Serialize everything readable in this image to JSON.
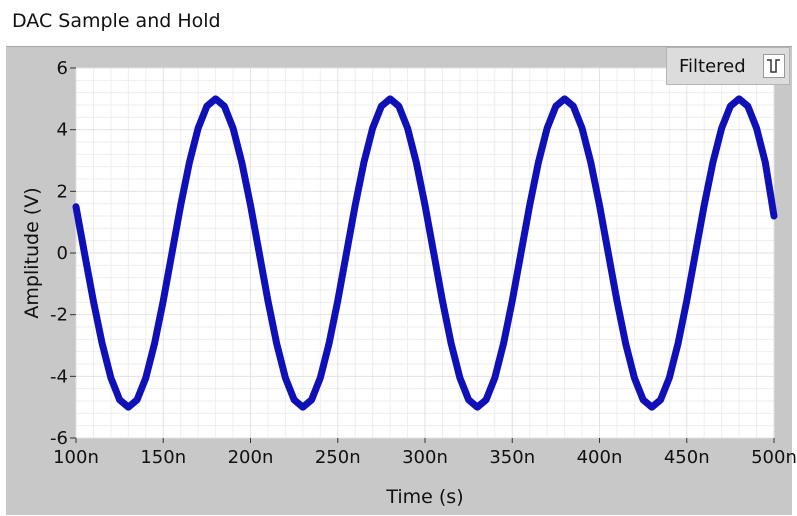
{
  "title": "DAC Sample and Hold",
  "legend": {
    "label": "Filtered"
  },
  "colors": {
    "series": "#1010b8",
    "frame": "#c8c8c8",
    "grid": "#e2e2e2"
  },
  "chart_data": {
    "type": "line",
    "title": "DAC Sample and Hold",
    "xlabel": "Time (s)",
    "ylabel": "Amplitude (V)",
    "xlim": [
      1e-07,
      5e-07
    ],
    "ylim": [
      -6,
      6
    ],
    "x_ticks": [
      1e-07,
      1.5e-07,
      2e-07,
      2.5e-07,
      3e-07,
      3.5e-07,
      4e-07,
      4.5e-07,
      5e-07
    ],
    "x_tick_labels": [
      "100n",
      "150n",
      "200n",
      "250n",
      "300n",
      "350n",
      "400n",
      "450n",
      "500n"
    ],
    "y_ticks": [
      -6,
      -4,
      -2,
      0,
      2,
      4,
      6
    ],
    "y_tick_labels": [
      "-6",
      "-4",
      "-2",
      "0",
      "2",
      "4",
      "6"
    ],
    "grid": true,
    "legend_position": "top-right",
    "series": [
      {
        "name": "Filtered",
        "x": [
          1e-07,
          1.05e-07,
          1.1e-07,
          1.15e-07,
          1.2e-07,
          1.25e-07,
          1.3e-07,
          1.35e-07,
          1.4e-07,
          1.45e-07,
          1.5e-07,
          1.55e-07,
          1.6e-07,
          1.65e-07,
          1.7e-07,
          1.75e-07,
          1.8e-07,
          1.85e-07,
          1.9e-07,
          1.95e-07,
          2e-07,
          2.05e-07,
          2.1e-07,
          2.15e-07,
          2.2e-07,
          2.25e-07,
          2.3e-07,
          2.35e-07,
          2.4e-07,
          2.45e-07,
          2.5e-07,
          2.55e-07,
          2.6e-07,
          2.65e-07,
          2.7e-07,
          2.75e-07,
          2.8e-07,
          2.85e-07,
          2.9e-07,
          2.95e-07,
          3e-07,
          3.05e-07,
          3.1e-07,
          3.15e-07,
          3.2e-07,
          3.25e-07,
          3.3e-07,
          3.35e-07,
          3.4e-07,
          3.45e-07,
          3.5e-07,
          3.55e-07,
          3.6e-07,
          3.65e-07,
          3.7e-07,
          3.75e-07,
          3.8e-07,
          3.85e-07,
          3.9e-07,
          3.95e-07,
          4e-07,
          4.05e-07,
          4.1e-07,
          4.15e-07,
          4.2e-07,
          4.25e-07,
          4.3e-07,
          4.35e-07,
          4.4e-07,
          4.45e-07,
          4.5e-07,
          4.55e-07,
          4.6e-07,
          4.65e-07,
          4.7e-07,
          4.75e-07,
          4.8e-07,
          4.85e-07,
          4.9e-07,
          4.95e-07,
          5e-07
        ],
        "y": [
          1.5,
          -0.05,
          -1.57,
          -2.94,
          -4.05,
          -4.76,
          -5.0,
          -4.76,
          -4.05,
          -2.94,
          -1.55,
          0.0,
          1.55,
          2.94,
          4.05,
          4.76,
          5.0,
          4.76,
          4.05,
          2.94,
          1.55,
          0.0,
          -1.55,
          -2.94,
          -4.05,
          -4.76,
          -5.0,
          -4.76,
          -4.05,
          -2.94,
          -1.55,
          0.0,
          1.55,
          2.94,
          4.05,
          4.76,
          5.0,
          4.76,
          4.05,
          2.94,
          1.55,
          0.0,
          -1.55,
          -2.94,
          -4.05,
          -4.76,
          -5.0,
          -4.76,
          -4.05,
          -2.94,
          -1.55,
          0.0,
          1.55,
          2.94,
          4.05,
          4.76,
          5.0,
          4.76,
          4.05,
          2.94,
          1.55,
          0.0,
          -1.55,
          -2.94,
          -4.05,
          -4.76,
          -5.0,
          -4.76,
          -4.05,
          -2.94,
          -1.55,
          0.0,
          1.55,
          2.94,
          4.05,
          4.76,
          5.0,
          4.76,
          4.05,
          2.94,
          1.2
        ]
      }
    ]
  }
}
